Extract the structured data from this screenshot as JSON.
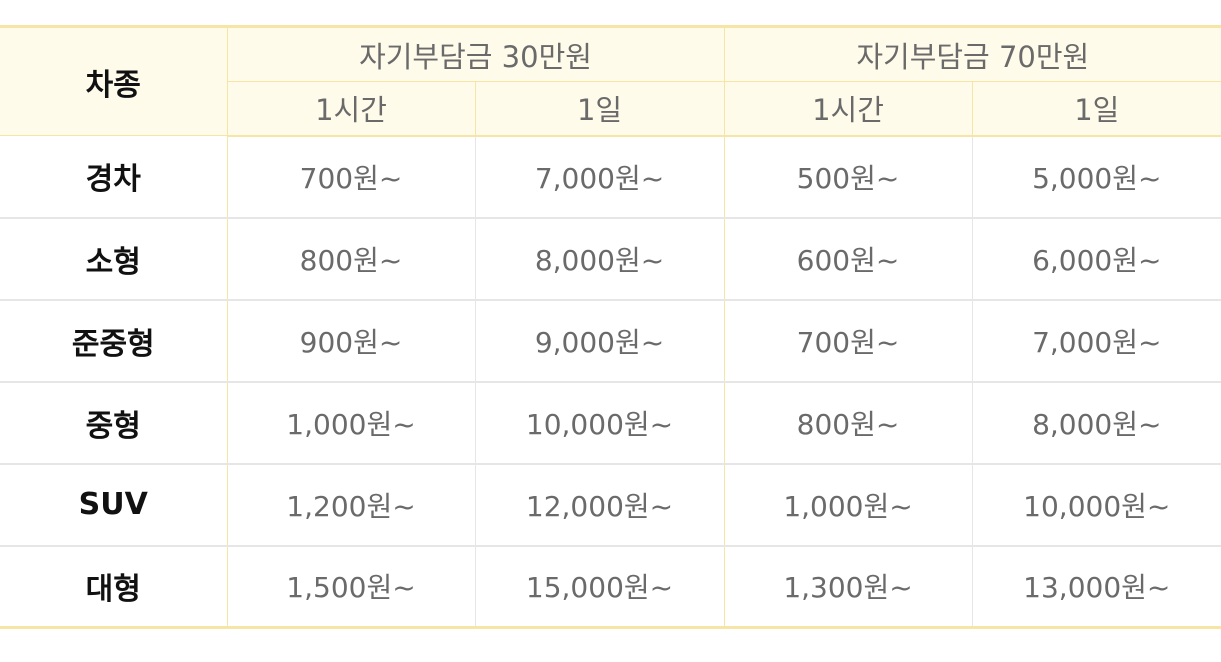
{
  "header": {
    "corner": "차종",
    "groups": [
      {
        "label": "자기부담금 30만원",
        "sub": [
          "1시간",
          "1일"
        ]
      },
      {
        "label": "자기부담금 70만원",
        "sub": [
          "1시간",
          "1일"
        ]
      }
    ]
  },
  "rows": [
    {
      "label": "경차",
      "cells": [
        "700원~",
        "7,000원~",
        "500원~",
        "5,000원~"
      ]
    },
    {
      "label": "소형",
      "cells": [
        "800원~",
        "8,000원~",
        "600원~",
        "6,000원~"
      ]
    },
    {
      "label": "준중형",
      "cells": [
        "900원~",
        "9,000원~",
        "700원~",
        "7,000원~"
      ]
    },
    {
      "label": "중형",
      "cells": [
        "1,000원~",
        "10,000원~",
        "800원~",
        "8,000원~"
      ]
    },
    {
      "label": "SUV",
      "cells": [
        "1,200원~",
        "12,000원~",
        "1,000원~",
        "10,000원~"
      ]
    },
    {
      "label": "대형",
      "cells": [
        "1,500원~",
        "15,000원~",
        "1,300원~",
        "13,000원~"
      ]
    }
  ],
  "colors": {
    "header_bg": "#fffbea",
    "header_border": "#f6e6a6",
    "grid_border": "#e6e6e6",
    "label_text": "#111111",
    "value_text": "#6a6a6a"
  }
}
